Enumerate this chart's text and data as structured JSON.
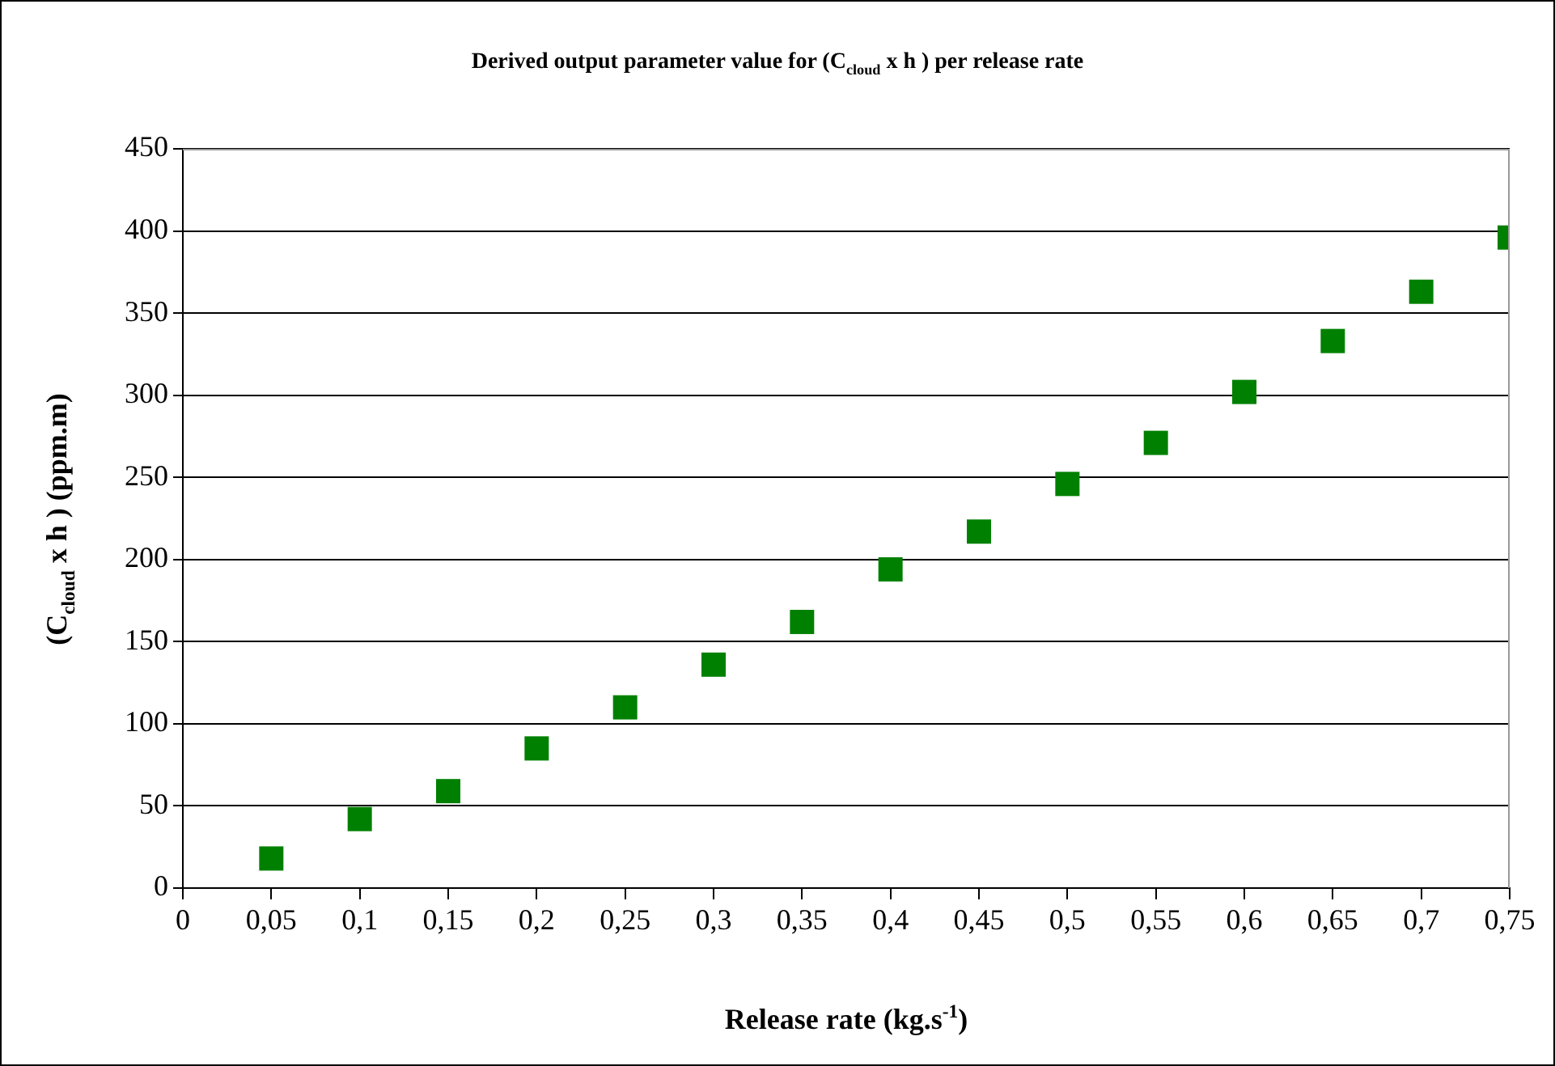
{
  "chart_data": {
    "type": "scatter",
    "title": "Derived output parameter value for (C$_{cloud}$ x h ) per release rate",
    "xlabel": "Release rate (kg.s$^{-1}$)",
    "ylabel": "(C$_{cloud}$ x h ) (ppm.m)",
    "x": [
      0.05,
      0.1,
      0.15,
      0.2,
      0.25,
      0.3,
      0.35,
      0.4,
      0.45,
      0.5,
      0.55,
      0.6,
      0.65,
      0.7,
      0.75
    ],
    "series": [
      {
        "color": "#008000",
        "values": [
          18,
          42,
          59,
          85,
          110,
          136,
          162,
          194,
          217,
          246,
          271,
          302,
          333,
          363,
          396
        ]
      }
    ],
    "xlim": [
      0,
      0.75
    ],
    "xticks": [
      0,
      {
        "value": 0.05,
        "label": "0,05"
      },
      {
        "value": 0.1,
        "label": "0,1"
      },
      {
        "value": 0.15,
        "label": "0,15"
      },
      {
        "value": 0.2,
        "label": "0,2"
      },
      {
        "value": 0.25,
        "label": "0,25"
      },
      {
        "value": 0.3,
        "label": "0,3"
      },
      {
        "value": 0.35,
        "label": "0,35"
      },
      {
        "value": 0.4,
        "label": "0,4"
      },
      {
        "value": 0.45,
        "label": "0,45"
      },
      {
        "value": 0.5,
        "label": "0,5"
      },
      {
        "value": 0.55,
        "label": "0,55"
      },
      {
        "value": 0.6,
        "label": "0,6"
      },
      {
        "value": 0.65,
        "label": "0,65"
      },
      {
        "value": 0.7,
        "label": "0,7"
      },
      {
        "value": 0.75,
        "label": "0,75"
      }
    ],
    "ylim": [
      0,
      450
    ],
    "yticks": [
      0,
      50,
      100,
      150,
      200,
      250,
      300,
      350,
      400,
      450
    ],
    "grid": "y",
    "legend": false,
    "marker": "square"
  }
}
